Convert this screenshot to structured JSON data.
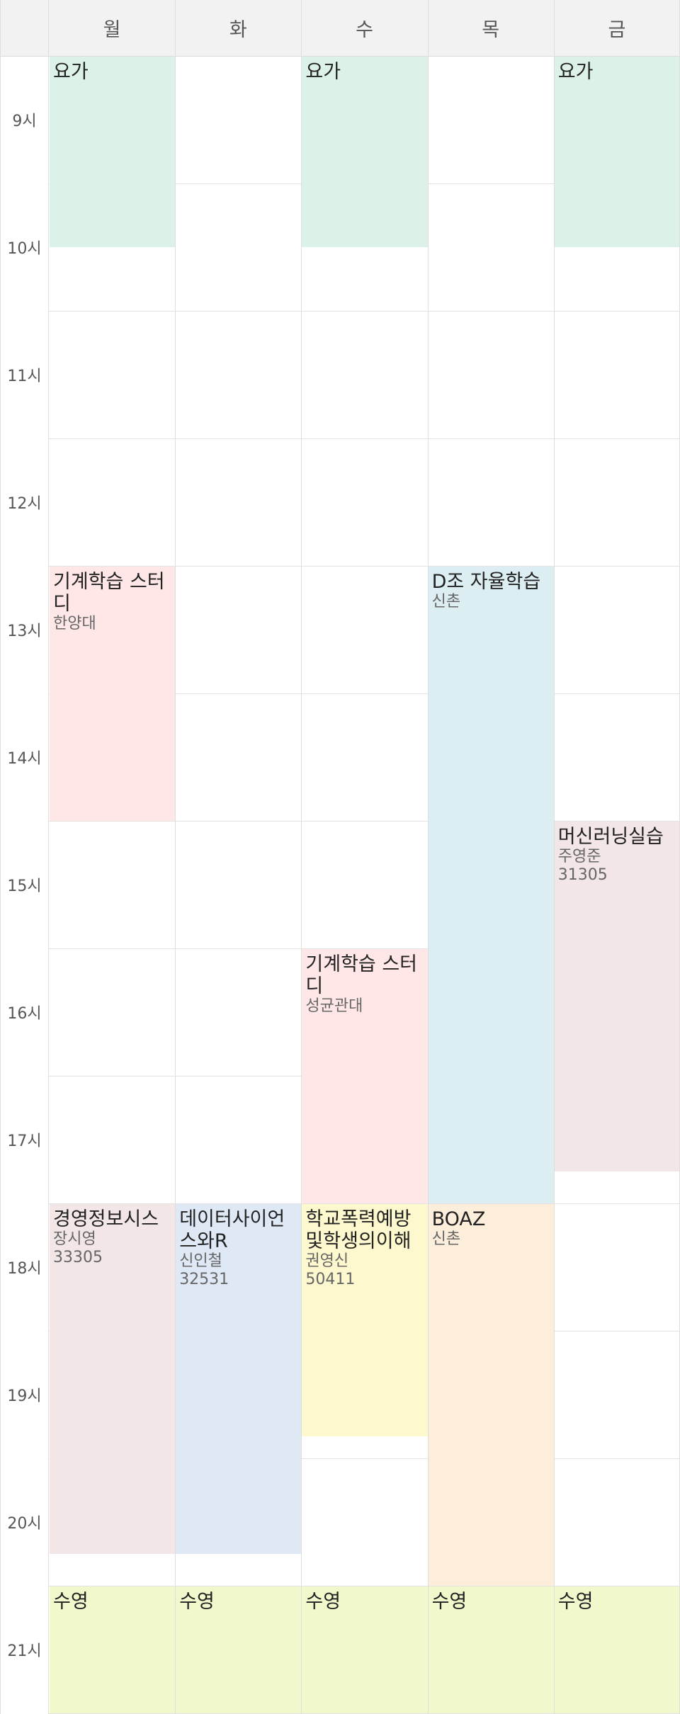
{
  "days": [
    "월",
    "화",
    "수",
    "목",
    "금"
  ],
  "times": [
    "9시",
    "10시",
    "11시",
    "12시",
    "13시",
    "14시",
    "15시",
    "16시",
    "17시",
    "18시",
    "19시",
    "20시",
    "21시"
  ],
  "colors": {
    "yoga": "#dcf1e7",
    "study": "#ffe7e8",
    "dstudy": "#ddeef2",
    "mauve": "#f2e6e6",
    "blue": "#dfe8f5",
    "yellow": "#fdf8cd",
    "orange": "#fdeddb",
    "lime": "#f0f8cc"
  },
  "events": [
    {
      "day": 0,
      "start": 9.0,
      "end": 10.5,
      "title": "요가",
      "lines": [],
      "color": "yoga"
    },
    {
      "day": 2,
      "start": 9.0,
      "end": 10.5,
      "title": "요가",
      "lines": [],
      "color": "yoga"
    },
    {
      "day": 4,
      "start": 9.0,
      "end": 10.5,
      "title": "요가",
      "lines": [],
      "color": "yoga"
    },
    {
      "day": 0,
      "start": 13.0,
      "end": 15.0,
      "title": "기계학습 스터디",
      "lines": [
        "한양대"
      ],
      "color": "study"
    },
    {
      "day": 3,
      "start": 13.0,
      "end": 18.0,
      "title": "D조 자율학습",
      "lines": [
        "신촌"
      ],
      "color": "dstudy"
    },
    {
      "day": 4,
      "start": 15.0,
      "end": 17.75,
      "title": "머신러닝실습",
      "lines": [
        "주영준",
        "31305"
      ],
      "color": "mauve"
    },
    {
      "day": 2,
      "start": 16.0,
      "end": 18.0,
      "title": "기계학습 스터디",
      "lines": [
        "성균관대"
      ],
      "color": "study"
    },
    {
      "day": 0,
      "start": 18.0,
      "end": 20.75,
      "title": "경영정보시스",
      "lines": [
        "장시영",
        "33305"
      ],
      "color": "mauve"
    },
    {
      "day": 1,
      "start": 18.0,
      "end": 20.75,
      "title": "데이터사이언스와R",
      "lines": [
        "신인철",
        "32531"
      ],
      "color": "blue"
    },
    {
      "day": 2,
      "start": 18.0,
      "end": 19.83,
      "title": "학교폭력예방및학생의이해",
      "lines": [
        "권영신",
        "50411"
      ],
      "color": "yellow"
    },
    {
      "day": 3,
      "start": 18.0,
      "end": 21.0,
      "title": "BOAZ",
      "lines": [
        "신촌"
      ],
      "color": "orange"
    },
    {
      "day": 0,
      "start": 21.0,
      "end": 22.0,
      "title": "수영",
      "lines": [],
      "color": "lime"
    },
    {
      "day": 1,
      "start": 21.0,
      "end": 22.0,
      "title": "수영",
      "lines": [],
      "color": "lime"
    },
    {
      "day": 2,
      "start": 21.0,
      "end": 22.0,
      "title": "수영",
      "lines": [],
      "color": "lime"
    },
    {
      "day": 3,
      "start": 21.0,
      "end": 22.0,
      "title": "수영",
      "lines": [],
      "color": "lime"
    },
    {
      "day": 4,
      "start": 21.0,
      "end": 22.0,
      "title": "수영",
      "lines": [],
      "color": "lime"
    }
  ]
}
